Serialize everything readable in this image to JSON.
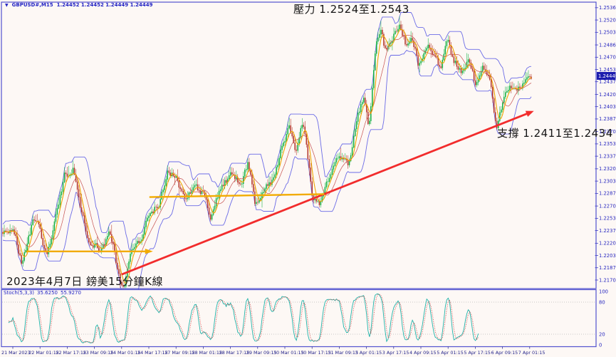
{
  "app": {
    "background": "#fdf8f5",
    "frame_color": "#5353cf",
    "axis_text_color": "#2a2ac0",
    "time_text_color": "#22228a"
  },
  "header": {
    "marker": "▼",
    "symbol": "GBPUSD#,M15",
    "quotes": [
      "1.24452",
      "1.24452",
      "1.24449",
      "1.24449"
    ]
  },
  "annotations": {
    "resistance": "壓力 1.2524至1.2543",
    "support": "支撐 1.2411至1.2434",
    "caption": "2023年4月7日 鎊美15分鐘K線"
  },
  "price_axis": {
    "labels": [
      "1.25365",
      "1.25200",
      "1.25035",
      "1.24865",
      "1.24700",
      "1.24535",
      "1.24370",
      "1.24200",
      "1.24035",
      "1.23870",
      "1.23700",
      "1.23535",
      "1.23370",
      "1.23200",
      "1.23035",
      "1.22870",
      "1.22700",
      "1.22535",
      "1.22370",
      "1.22200",
      "1.22035",
      "1.21870",
      "1.21705"
    ],
    "current_price": "1.24449",
    "tag_bg": "#1c1cae",
    "tag_text": "#ffffff"
  },
  "time_axis": {
    "labels": [
      "21 Mar 2023",
      "22 Mar 01:15",
      "22 Mar 17:15",
      "23 Mar 09:15",
      "24 Mar 01:15",
      "24 Mar 17:15",
      "27 Mar 09:15",
      "28 Mar 01:15",
      "28 Mar 17:15",
      "29 Mar 09:15",
      "30 Mar 01:15",
      "30 Mar 17:15",
      "31 Mar 09:15",
      "3 Apr 01:15",
      "3 Apr 17:15",
      "4 Apr 09:15",
      "5 Apr 01:15",
      "5 Apr 17:15",
      "6 Apr 09:15",
      "7 Apr 01:15"
    ]
  },
  "stoch_panel": {
    "name": "Stoch(5,3,3)",
    "value_main": "35.6250",
    "value_signal": "55.9270",
    "scale_labels": [
      "100",
      "80",
      "20",
      "0"
    ],
    "dotted_levels": [
      80,
      20
    ]
  },
  "chart_data": {
    "type": "candlestick",
    "symbol": "GBPUSD#",
    "timeframe": "M15",
    "ylim": [
      1.2159,
      1.2544
    ],
    "n_candles": 370,
    "price_anchors": [
      [
        0.007,
        1.2236
      ],
      [
        0.023,
        1.2231
      ],
      [
        0.036,
        1.2191
      ],
      [
        0.057,
        1.225
      ],
      [
        0.07,
        1.2238
      ],
      [
        0.083,
        1.22
      ],
      [
        0.101,
        1.226
      ],
      [
        0.117,
        1.2312
      ],
      [
        0.133,
        1.2322
      ],
      [
        0.147,
        1.2269
      ],
      [
        0.164,
        1.2221
      ],
      [
        0.184,
        1.2216
      ],
      [
        0.201,
        1.2231
      ],
      [
        0.211,
        1.2207
      ],
      [
        0.222,
        1.2164
      ],
      [
        0.232,
        1.2171
      ],
      [
        0.245,
        1.2212
      ],
      [
        0.262,
        1.2223
      ],
      [
        0.279,
        1.226
      ],
      [
        0.295,
        1.2274
      ],
      [
        0.312,
        1.2317
      ],
      [
        0.33,
        1.2307
      ],
      [
        0.343,
        1.2281
      ],
      [
        0.359,
        1.2296
      ],
      [
        0.38,
        1.2288
      ],
      [
        0.393,
        1.226
      ],
      [
        0.413,
        1.2296
      ],
      [
        0.433,
        1.2312
      ],
      [
        0.451,
        1.2303
      ],
      [
        0.464,
        1.2331
      ],
      [
        0.478,
        1.2274
      ],
      [
        0.497,
        1.2298
      ],
      [
        0.514,
        1.2306
      ],
      [
        0.528,
        1.2351
      ],
      [
        0.541,
        1.2374
      ],
      [
        0.555,
        1.2341
      ],
      [
        0.568,
        1.2384
      ],
      [
        0.586,
        1.2283
      ],
      [
        0.599,
        1.2269
      ],
      [
        0.618,
        1.2307
      ],
      [
        0.635,
        1.2338
      ],
      [
        0.653,
        1.2322
      ],
      [
        0.669,
        1.2386
      ],
      [
        0.682,
        1.2418
      ],
      [
        0.692,
        1.2373
      ],
      [
        0.707,
        1.2489
      ],
      [
        0.716,
        1.2507
      ],
      [
        0.725,
        1.2475
      ],
      [
        0.736,
        1.2494
      ],
      [
        0.75,
        1.2515
      ],
      [
        0.763,
        1.2489
      ],
      [
        0.774,
        1.2501
      ],
      [
        0.787,
        1.2459
      ],
      [
        0.801,
        1.2489
      ],
      [
        0.814,
        1.2475
      ],
      [
        0.828,
        1.2456
      ],
      [
        0.841,
        1.2489
      ],
      [
        0.855,
        1.2465
      ],
      [
        0.868,
        1.2451
      ],
      [
        0.882,
        1.247
      ],
      [
        0.895,
        1.2432
      ],
      [
        0.908,
        1.2456
      ],
      [
        0.922,
        1.2437
      ],
      [
        0.934,
        1.237
      ],
      [
        0.948,
        1.2413
      ],
      [
        0.961,
        1.2432
      ],
      [
        0.974,
        1.2424
      ],
      [
        0.988,
        1.244
      ],
      [
        1.0,
        1.2445
      ]
    ],
    "colors": {
      "up": "#0faf3f",
      "down": "#b33226",
      "band": "#6b6be6",
      "ma_fast": "#eda400",
      "ma_slow": "#c65050",
      "stoch_main": "#1fb2a8",
      "stoch_signal": "#d23b3b"
    },
    "objects": {
      "support_trendline": {
        "x": [
          0.2248,
          0.9987
        ],
        "price": [
          1.2178,
          1.2396
        ],
        "color": "#f22c2c",
        "width": 2.8,
        "arrow": true
      },
      "support_zone_low": {
        "x": [
          0.0444,
          0.2773
        ],
        "price": [
          1.2209,
          1.2209
        ],
        "color": "#f2ab00",
        "width": 2.4,
        "arrow": true
      },
      "support_zone_high": {
        "x": [
          0.2773,
          0.6084
        ],
        "price": [
          1.2282,
          1.2286
        ],
        "color": "#f2ab00",
        "width": 2.4,
        "arrow": false
      }
    },
    "stoch": {
      "periods": "5,3,3",
      "range": [
        0,
        100
      ],
      "end_frac": 0.9
    }
  }
}
